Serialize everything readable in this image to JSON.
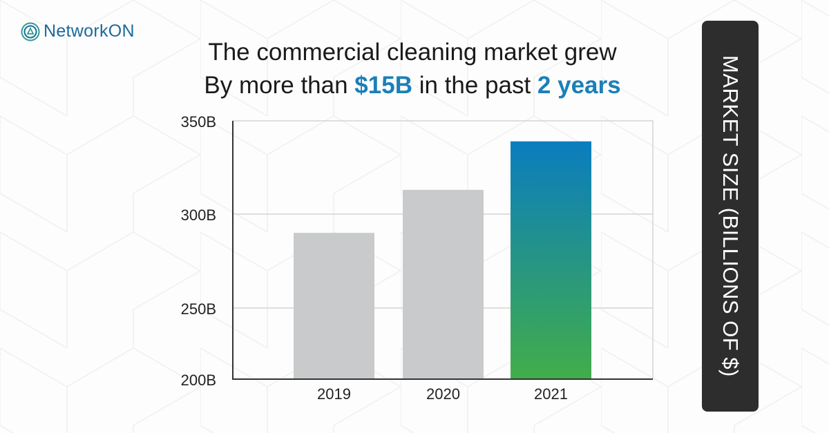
{
  "brand": {
    "name": "NetworkON",
    "icon": "concentric-circle-logo-icon",
    "color": "#1b6a9c"
  },
  "headline": {
    "line1": "The commercial cleaning market grew",
    "line2_prefix": "By more than ",
    "line2_highlight1": "$15B",
    "line2_middle": " in the past ",
    "line2_highlight2": "2 years",
    "highlight_color": "#1a80b8"
  },
  "side_label": "MARKET SIZE (BILLIONS OF $)",
  "chart_data": {
    "type": "bar",
    "categories": [
      "2019",
      "2020",
      "2021"
    ],
    "values": [
      290,
      313,
      339
    ],
    "ylabel": "MARKET SIZE (BILLIONS OF $)",
    "ylim": [
      200,
      350
    ],
    "yticks": [
      200,
      250,
      300,
      350
    ],
    "ytick_labels": [
      "200B",
      "250B",
      "300B",
      "350B"
    ],
    "grid": true,
    "colors": {
      "default": "#c9cacb",
      "highlight_top": "#0a7dbf",
      "highlight_bottom": "#42ad4a"
    },
    "highlighted_category": "2021"
  }
}
